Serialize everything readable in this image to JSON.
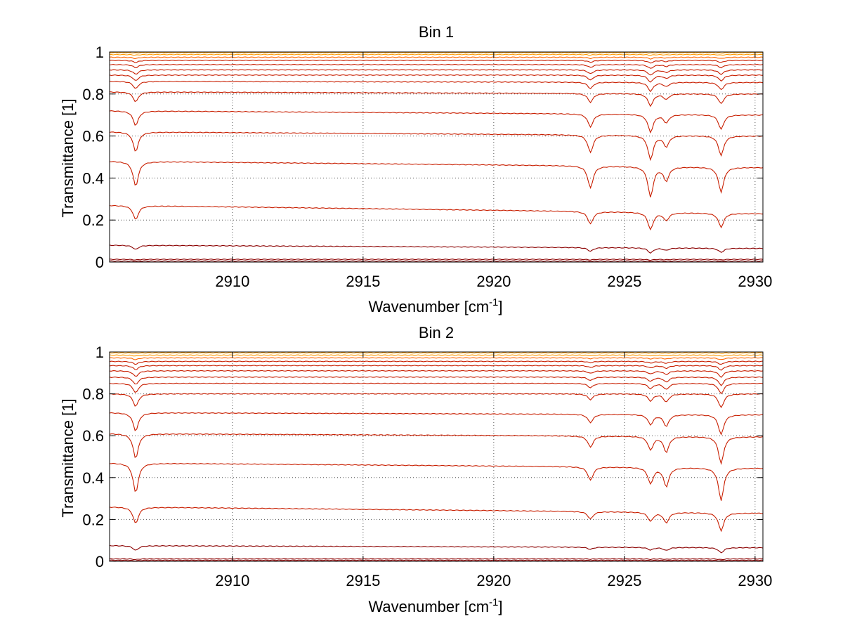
{
  "figure": {
    "shared_xlabel_main": "Wavenumber [cm",
    "shared_xlabel_sup": "-1",
    "shared_xlabel_end": "]",
    "ylabel": "Transmittance [1]"
  },
  "chart_data": [
    {
      "type": "line",
      "title": "Bin 1",
      "xlabel": "Wavenumber [cm-1]",
      "ylabel": "Transmittance [1]",
      "xlim": [
        2905.3,
        2930.3
      ],
      "ylim": [
        0,
        1
      ],
      "xticks": [
        2910,
        2915,
        2920,
        2925,
        2930
      ],
      "xtick_labels": [
        "2910",
        "2915",
        "2920",
        "2925",
        "2930"
      ],
      "yticks": [
        0,
        0.2,
        0.4,
        0.6,
        0.8,
        1
      ],
      "ytick_labels": [
        "0",
        "0.2",
        "0.4",
        "0.6",
        "0.8",
        "1"
      ],
      "grid": "dotted",
      "line_colors": [
        "#8b0000",
        "#c81e00",
        "#e23c00",
        "#ff6600",
        "#ff9900"
      ],
      "absorption_lines": [
        {
          "x": 2906.3,
          "rel_depth": 0.45
        },
        {
          "x": 2923.7,
          "rel_depth": 0.4
        },
        {
          "x": 2926.0,
          "rel_depth": 0.55
        },
        {
          "x": 2926.6,
          "rel_depth": 0.25
        },
        {
          "x": 2928.7,
          "rel_depth": 0.45
        }
      ],
      "series_baselines": [
        {
          "y_start": 0.005,
          "y_end": 0.005
        },
        {
          "y_start": 0.013,
          "y_end": 0.013
        },
        {
          "y_start": 0.08,
          "y_end": 0.065
        },
        {
          "y_start": 0.27,
          "y_end": 0.23
        },
        {
          "y_start": 0.48,
          "y_end": 0.45
        },
        {
          "y_start": 0.62,
          "y_end": 0.6
        },
        {
          "y_start": 0.72,
          "y_end": 0.7
        },
        {
          "y_start": 0.81,
          "y_end": 0.8
        },
        {
          "y_start": 0.86,
          "y_end": 0.855
        },
        {
          "y_start": 0.89,
          "y_end": 0.89
        },
        {
          "y_start": 0.915,
          "y_end": 0.915
        },
        {
          "y_start": 0.94,
          "y_end": 0.94
        },
        {
          "y_start": 0.96,
          "y_end": 0.96
        },
        {
          "y_start": 0.975,
          "y_end": 0.975
        },
        {
          "y_start": 0.988,
          "y_end": 0.988
        },
        {
          "y_start": 0.997,
          "y_end": 0.997
        }
      ]
    },
    {
      "type": "line",
      "title": "Bin 2",
      "xlabel": "Wavenumber [cm-1]",
      "ylabel": "Transmittance [1]",
      "xlim": [
        2905.3,
        2930.3
      ],
      "ylim": [
        0,
        1
      ],
      "xticks": [
        2910,
        2915,
        2920,
        2925,
        2930
      ],
      "xtick_labels": [
        "2910",
        "2915",
        "2920",
        "2925",
        "2930"
      ],
      "yticks": [
        0,
        0.2,
        0.4,
        0.6,
        0.8,
        1
      ],
      "ytick_labels": [
        "0",
        "0.2",
        "0.4",
        "0.6",
        "0.8",
        "1"
      ],
      "grid": "dotted",
      "line_colors": [
        "#8b0000",
        "#c81e00",
        "#e23c00",
        "#ff6600",
        "#ff9900"
      ],
      "absorption_lines": [
        {
          "x": 2906.3,
          "rel_depth": 0.55
        },
        {
          "x": 2923.7,
          "rel_depth": 0.25
        },
        {
          "x": 2926.0,
          "rel_depth": 0.3
        },
        {
          "x": 2926.6,
          "rel_depth": 0.35
        },
        {
          "x": 2928.7,
          "rel_depth": 0.6
        }
      ],
      "series_baselines": [
        {
          "y_start": 0.005,
          "y_end": 0.005
        },
        {
          "y_start": 0.012,
          "y_end": 0.012
        },
        {
          "y_start": 0.075,
          "y_end": 0.065
        },
        {
          "y_start": 0.26,
          "y_end": 0.23
        },
        {
          "y_start": 0.47,
          "y_end": 0.445
        },
        {
          "y_start": 0.61,
          "y_end": 0.595
        },
        {
          "y_start": 0.71,
          "y_end": 0.7
        },
        {
          "y_start": 0.8,
          "y_end": 0.8
        },
        {
          "y_start": 0.85,
          "y_end": 0.85
        },
        {
          "y_start": 0.88,
          "y_end": 0.88
        },
        {
          "y_start": 0.91,
          "y_end": 0.91
        },
        {
          "y_start": 0.935,
          "y_end": 0.935
        },
        {
          "y_start": 0.955,
          "y_end": 0.955
        },
        {
          "y_start": 0.972,
          "y_end": 0.972
        },
        {
          "y_start": 0.985,
          "y_end": 0.985
        },
        {
          "y_start": 0.996,
          "y_end": 0.996
        }
      ]
    }
  ]
}
